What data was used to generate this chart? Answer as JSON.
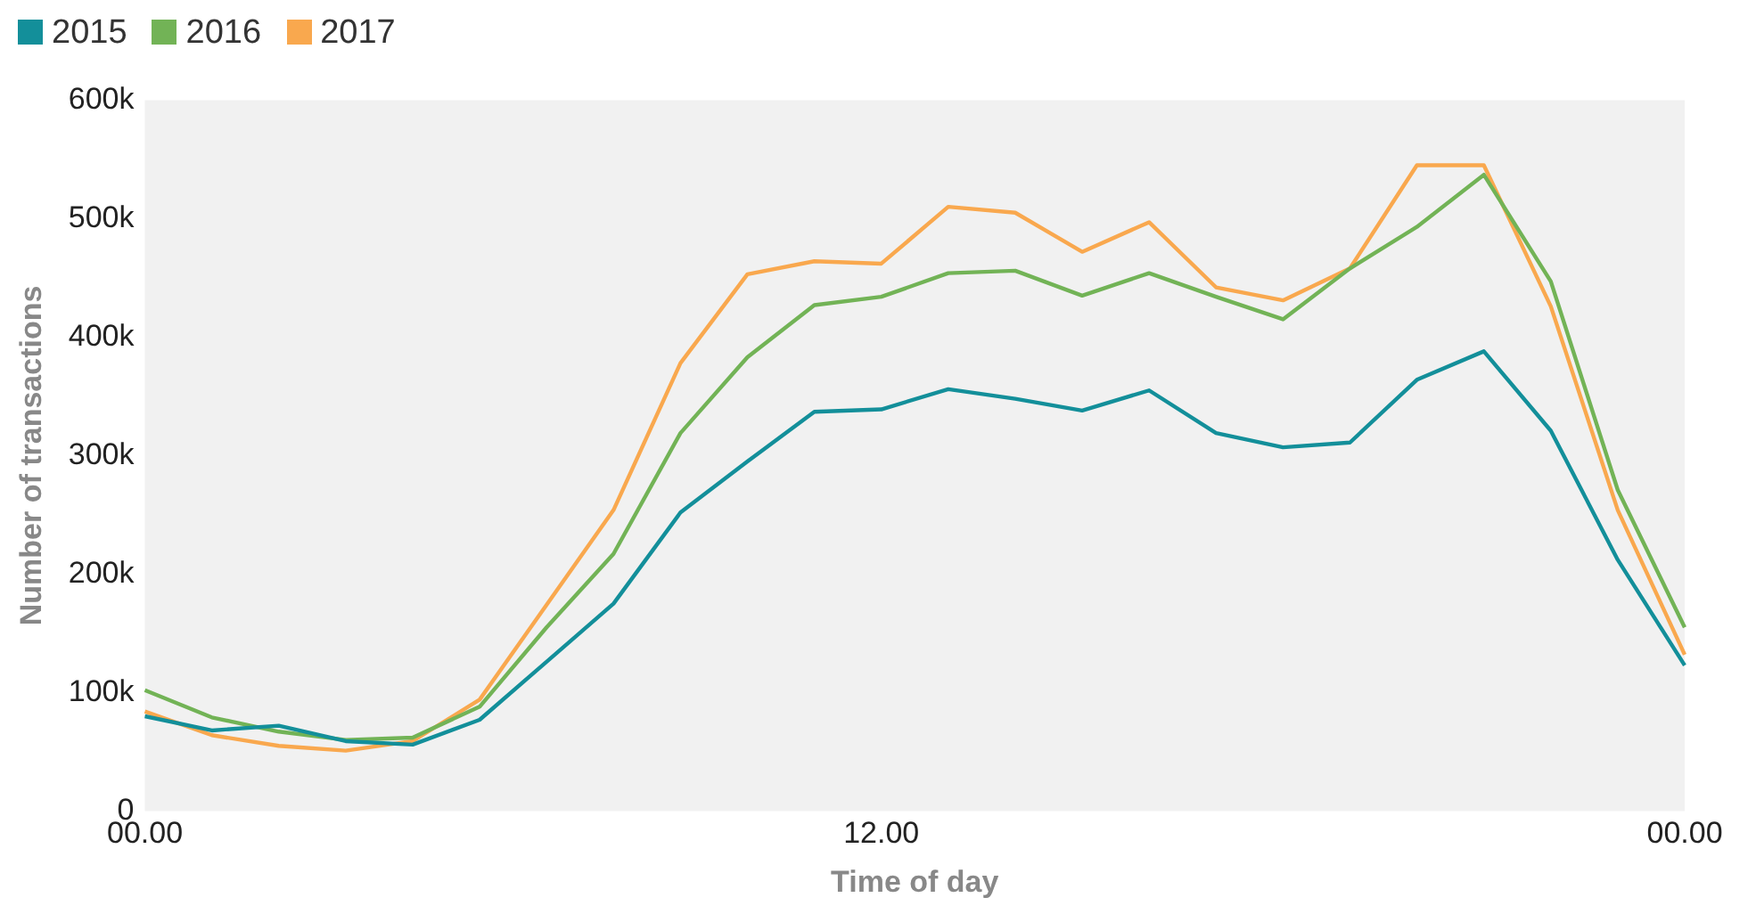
{
  "chart_data": {
    "type": "line",
    "xlabel": "Time of day",
    "ylabel": "Number of transactions",
    "categories": [
      "00.00",
      null,
      null,
      null,
      null,
      null,
      null,
      null,
      null,
      null,
      null,
      "12.00",
      null,
      null,
      null,
      null,
      null,
      null,
      null,
      null,
      null,
      null,
      null,
      "00.00"
    ],
    "series": [
      {
        "name": "2015",
        "color": "#138f9a",
        "values": [
          80000,
          68000,
          72000,
          59000,
          56000,
          77000,
          126000,
          175000,
          252000,
          295000,
          337000,
          339000,
          356000,
          348000,
          338000,
          355000,
          319000,
          307000,
          311000,
          364000,
          388000,
          321000,
          212000,
          123000
        ]
      },
      {
        "name": "2016",
        "color": "#72b356",
        "values": [
          102000,
          79000,
          67000,
          60000,
          62000,
          88000,
          155000,
          217000,
          319000,
          383000,
          427000,
          434000,
          454000,
          456000,
          435000,
          454000,
          434000,
          415000,
          458000,
          493000,
          537000,
          447000,
          271000,
          155000
        ]
      },
      {
        "name": "2017",
        "color": "#f9a84e",
        "values": [
          84000,
          64000,
          55000,
          51000,
          59000,
          94000,
          174000,
          254000,
          378000,
          453000,
          464000,
          462000,
          510000,
          505000,
          472000,
          497000,
          442000,
          431000,
          458000,
          545000,
          545000,
          426000,
          254000,
          132000
        ]
      }
    ],
    "ylim": [
      0,
      600000
    ],
    "yticks": [
      0,
      {
        "value": 100000,
        "label": "100k"
      },
      {
        "value": 200000,
        "label": "200k"
      },
      {
        "value": 300000,
        "label": "300k"
      },
      {
        "value": 400000,
        "label": "400k"
      },
      {
        "value": 500000,
        "label": "500k"
      },
      {
        "value": 600000,
        "label": "600k"
      }
    ],
    "grid": false,
    "legend": "top left",
    "marker": "none",
    "line_style": "solid"
  }
}
